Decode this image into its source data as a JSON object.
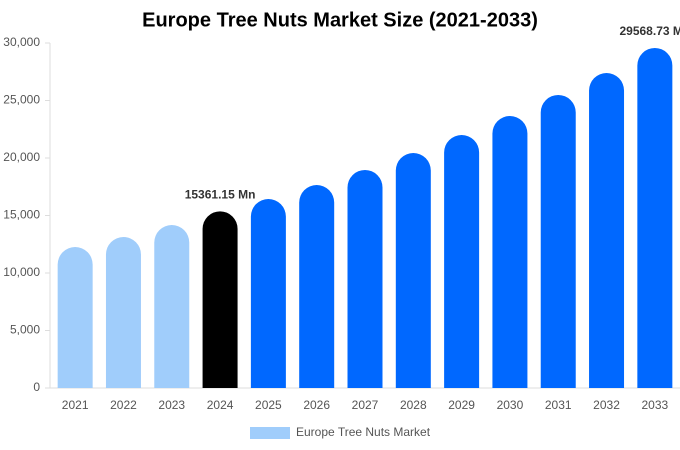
{
  "chart_data": {
    "type": "bar",
    "title": "Europe Tree Nuts Market Size (2021-2033)",
    "categories": [
      "2021",
      "2022",
      "2023",
      "2024",
      "2025",
      "2026",
      "2027",
      "2028",
      "2029",
      "2030",
      "2031",
      "2032",
      "2033"
    ],
    "series": [
      {
        "name": "Europe Tree Nuts Market",
        "color": "#a0cdfb",
        "values": [
          12260,
          13130,
          14170,
          15361.15,
          16430,
          17650,
          18960,
          20430,
          22000,
          23650,
          25480,
          27390,
          29568.73
        ],
        "value_labels": [
          null,
          null,
          null,
          "15361.15 Mn",
          null,
          null,
          null,
          null,
          null,
          null,
          null,
          null,
          "29568.73 Mn"
        ],
        "colors": [
          "#a0cdfb",
          "#a0cdfb",
          "#a0cdfb",
          "#000000",
          "#0068ff",
          "#0068ff",
          "#0068ff",
          "#0068ff",
          "#0068ff",
          "#0068ff",
          "#0068ff",
          "#0068ff",
          "#0068ff"
        ]
      }
    ],
    "ylim": [
      0,
      30000
    ],
    "yticks": [
      0,
      {
        "value": 5000,
        "label": "5,000"
      },
      {
        "value": 10000,
        "label": "10,000"
      },
      {
        "value": 15000,
        "label": "15,000"
      },
      {
        "value": 20000,
        "label": "20,000"
      },
      {
        "value": 25000,
        "label": "25,000"
      },
      {
        "value": 30000,
        "label": "30,000"
      }
    ],
    "grid": false
  }
}
